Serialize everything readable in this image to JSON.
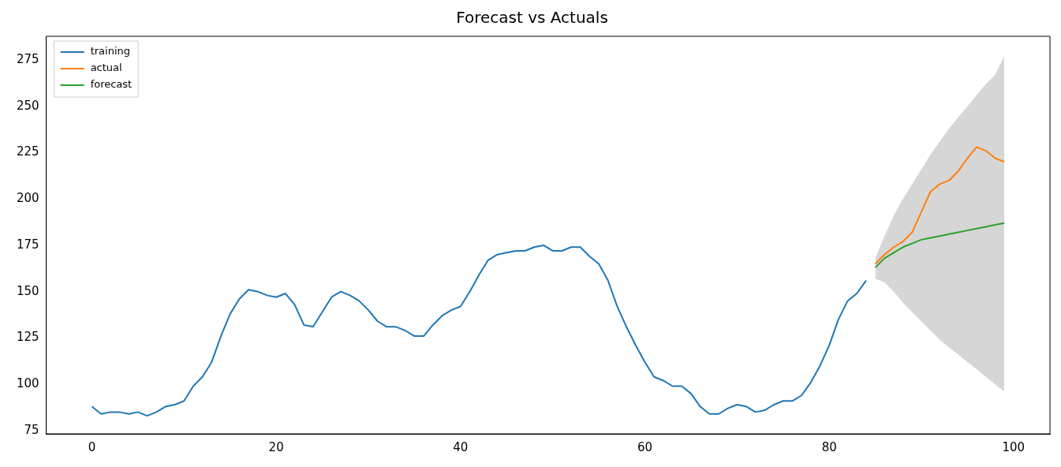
{
  "chart_data": {
    "type": "line",
    "title": "Forecast vs Actuals",
    "legend": "top left",
    "xlim": [
      -4.95,
      103.95
    ],
    "xticks": [
      0,
      20,
      40,
      60,
      80,
      100
    ],
    "ylim": [
      73.25,
      287.75
    ],
    "yticks": [
      75,
      100,
      125,
      150,
      175,
      200,
      225,
      250,
      275
    ],
    "grid": false,
    "series": [
      {
        "name": "training",
        "color": "#1f77b4",
        "x": [
          0,
          1,
          2,
          3,
          4,
          5,
          6,
          7,
          8,
          9,
          10,
          11,
          12,
          13,
          14,
          15,
          16,
          17,
          18,
          19,
          20,
          21,
          22,
          23,
          24,
          25,
          26,
          27,
          28,
          29,
          30,
          31,
          32,
          33,
          34,
          35,
          36,
          37,
          38,
          39,
          40,
          41,
          42,
          43,
          44,
          45,
          46,
          47,
          48,
          49,
          50,
          51,
          52,
          53,
          54,
          55,
          56,
          57,
          58,
          59,
          60,
          61,
          62,
          63,
          64,
          65,
          66,
          67,
          68,
          69,
          70,
          71,
          72,
          73,
          74,
          75,
          76,
          77,
          78,
          79,
          80,
          81,
          82,
          83,
          84
        ],
        "values": [
          88,
          84,
          85,
          85,
          84,
          85,
          83,
          85,
          88,
          89,
          91,
          99,
          104,
          112,
          126,
          138,
          146,
          151,
          150,
          148,
          147,
          149,
          143,
          132,
          131,
          139,
          147,
          150,
          148,
          145,
          140,
          134,
          131,
          131,
          129,
          126,
          126,
          132,
          137,
          140,
          142,
          150,
          159,
          167,
          170,
          171,
          172,
          172,
          174,
          175,
          172,
          172,
          174,
          174,
          169,
          165,
          156,
          142,
          131,
          121,
          112,
          104,
          102,
          99,
          99,
          95,
          88,
          84,
          84,
          87,
          89,
          88,
          85,
          86,
          89,
          91,
          91,
          94,
          101,
          110,
          121,
          135,
          145,
          149,
          156
        ]
      },
      {
        "name": "actual",
        "color": "#ff7f0e",
        "x": [
          85,
          86,
          87,
          88,
          89,
          90,
          91,
          92,
          93,
          94,
          95,
          96,
          97,
          98,
          99
        ],
        "values": [
          165,
          170,
          174,
          177,
          182,
          193,
          204,
          208,
          210,
          215,
          222,
          228,
          226,
          222,
          220
        ]
      },
      {
        "name": "forecast",
        "color": "#2ca02c",
        "x": [
          85,
          86,
          87,
          88,
          89,
          90,
          91,
          92,
          93,
          94,
          95,
          96,
          97,
          98,
          99
        ],
        "values": [
          163,
          168,
          171,
          174,
          176,
          178,
          179,
          180,
          181,
          182,
          183,
          184,
          185,
          186,
          187
        ],
        "lower": [
          157,
          155,
          150,
          144,
          139,
          134,
          129,
          124,
          120,
          116,
          112,
          108,
          104,
          100,
          96
        ],
        "upper": [
          168,
          180,
          191,
          200,
          208,
          216,
          224,
          231,
          238,
          244,
          250,
          256,
          262,
          267,
          277
        ]
      }
    ]
  }
}
